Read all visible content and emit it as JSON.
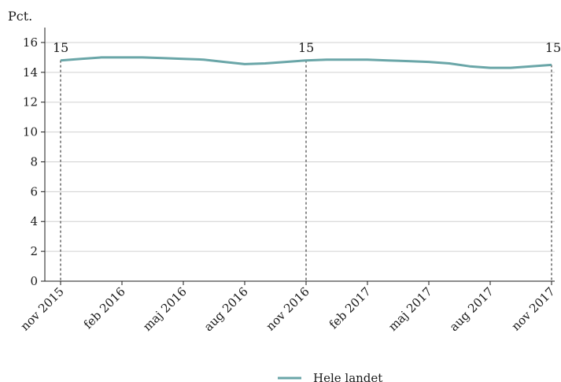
{
  "chart_data": {
    "type": "line",
    "ylabel": "Pct.",
    "ylim": [
      0,
      17
    ],
    "yticks": [
      0,
      2,
      4,
      6,
      8,
      10,
      12,
      14,
      16
    ],
    "grid": "horizontal",
    "legend_position": "bottom",
    "x_tick_labels": [
      "nov 2015",
      "feb 2016",
      "maj 2016",
      "aug 2016",
      "nov 2016",
      "feb 2017",
      "maj 2017",
      "aug 2017",
      "nov 2017"
    ],
    "x": [
      "2015-11",
      "2015-12",
      "2016-01",
      "2016-02",
      "2016-03",
      "2016-04",
      "2016-05",
      "2016-06",
      "2016-07",
      "2016-08",
      "2016-09",
      "2016-10",
      "2016-11",
      "2016-12",
      "2017-01",
      "2017-02",
      "2017-03",
      "2017-04",
      "2017-05",
      "2017-06",
      "2017-07",
      "2017-08",
      "2017-09",
      "2017-10",
      "2017-11"
    ],
    "series": [
      {
        "name": "Hele landet",
        "color": "#6aa6a8",
        "values": [
          14.8,
          14.9,
          15.0,
          15.0,
          15.0,
          14.95,
          14.9,
          14.85,
          14.7,
          14.55,
          14.6,
          14.7,
          14.8,
          14.85,
          14.85,
          14.85,
          14.8,
          14.75,
          14.7,
          14.6,
          14.4,
          14.3,
          14.3,
          14.4,
          14.5
        ]
      }
    ],
    "annotations": [
      {
        "x": "2015-11",
        "label": "15"
      },
      {
        "x": "2016-11",
        "label": "15"
      },
      {
        "x": "2017-11",
        "label": "15"
      }
    ]
  }
}
